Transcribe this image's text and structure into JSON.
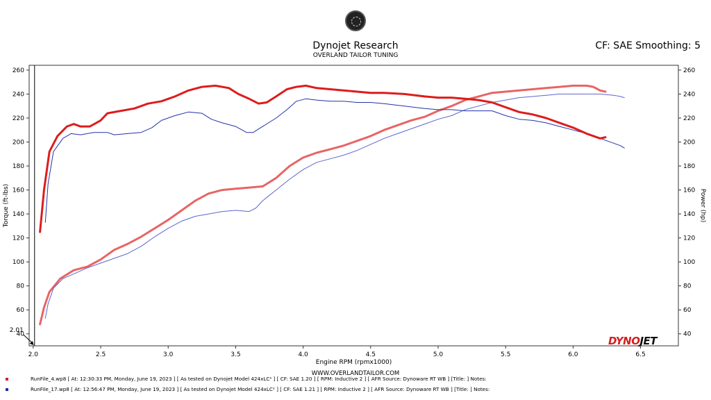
{
  "header": {
    "title": "Dynojet Research",
    "subtitle": "OVERLAND TAILOR TUNING",
    "settings": "CF: SAE Smoothing: 5"
  },
  "footer": {
    "url": "WWW.OVERLANDTAILOR.COM"
  },
  "brand": {
    "part1": "DYNO",
    "part2": "JET"
  },
  "runs": [
    {
      "text": "RunFile_4.wp8  [ At:  12:30:33 PM, Monday, June 19, 2023 ]  [ As tested on Dynojet Model 424xLC² ]  [ CF: SAE 1.20 ]  [ RPM: Inductive 2 ]  [ AFR Source: Dynoware RT WB ]  [Title: ]   Notes:",
      "color": "#d41f1f"
    },
    {
      "text": "RunFile_17.wp8  [ At:  12:56:47 PM, Monday, June 19, 2023 ]  [ As tested on Dynojet Model 424xLC² ]  [ CF: SAE 1.21 ]  [ RPM: Inductive 2 ]  [ AFR Source: Dynoware RT WB ]  [Title: ]   Notes:",
      "color": "#1a2db5"
    }
  ],
  "chart_data": {
    "type": "line",
    "xlabel": "Engine RPM (rpmx1000)",
    "ylabel": "Torque (ft-lbs)",
    "y2label": "Power (hp)",
    "xlim": [
      1.97,
      6.78
    ],
    "ylim": [
      30,
      264
    ],
    "xticks": [
      "2.0",
      "2.5",
      "3.0",
      "3.5",
      "4.0",
      "4.5",
      "5.0",
      "5.5",
      "6.0",
      "6.5"
    ],
    "yticks": [
      40,
      60,
      80,
      100,
      120,
      140,
      160,
      180,
      200,
      220,
      240,
      260
    ],
    "cursor": {
      "x": 2.01,
      "label": "2.01"
    },
    "grid": false,
    "series": [
      {
        "name": "RunFile_4.wp8",
        "kind": "torque",
        "color": "#dd1c1c",
        "width": 3,
        "points": [
          [
            2.05,
            125
          ],
          [
            2.08,
            160
          ],
          [
            2.12,
            192
          ],
          [
            2.18,
            205
          ],
          [
            2.25,
            213
          ],
          [
            2.3,
            215
          ],
          [
            2.35,
            213
          ],
          [
            2.42,
            213
          ],
          [
            2.5,
            218
          ],
          [
            2.55,
            224
          ],
          [
            2.65,
            226
          ],
          [
            2.75,
            228
          ],
          [
            2.85,
            232
          ],
          [
            2.95,
            234
          ],
          [
            3.05,
            238
          ],
          [
            3.15,
            243
          ],
          [
            3.25,
            246
          ],
          [
            3.35,
            247
          ],
          [
            3.45,
            245
          ],
          [
            3.52,
            240
          ],
          [
            3.6,
            236
          ],
          [
            3.67,
            232
          ],
          [
            3.73,
            233
          ],
          [
            3.8,
            238
          ],
          [
            3.88,
            244
          ],
          [
            3.95,
            246
          ],
          [
            4.02,
            247
          ],
          [
            4.1,
            245
          ],
          [
            4.2,
            244
          ],
          [
            4.3,
            243
          ],
          [
            4.4,
            242
          ],
          [
            4.5,
            241
          ],
          [
            4.6,
            241
          ],
          [
            4.75,
            240
          ],
          [
            4.9,
            238
          ],
          [
            5.0,
            237
          ],
          [
            5.1,
            237
          ],
          [
            5.2,
            236
          ],
          [
            5.3,
            235
          ],
          [
            5.4,
            233
          ],
          [
            5.5,
            229
          ],
          [
            5.6,
            225
          ],
          [
            5.7,
            223
          ],
          [
            5.8,
            220
          ],
          [
            5.9,
            216
          ],
          [
            6.0,
            212
          ],
          [
            6.1,
            207
          ],
          [
            6.2,
            203
          ],
          [
            6.24,
            204
          ]
        ]
      },
      {
        "name": "RunFile_17.wp8",
        "kind": "torque",
        "color": "#2332a8",
        "width": 1,
        "points": [
          [
            2.09,
            133
          ],
          [
            2.11,
            165
          ],
          [
            2.15,
            192
          ],
          [
            2.22,
            203
          ],
          [
            2.28,
            207
          ],
          [
            2.35,
            206
          ],
          [
            2.45,
            208
          ],
          [
            2.55,
            208
          ],
          [
            2.6,
            206
          ],
          [
            2.7,
            207
          ],
          [
            2.8,
            208
          ],
          [
            2.88,
            212
          ],
          [
            2.95,
            218
          ],
          [
            3.05,
            222
          ],
          [
            3.15,
            225
          ],
          [
            3.25,
            224
          ],
          [
            3.32,
            219
          ],
          [
            3.4,
            216
          ],
          [
            3.5,
            213
          ],
          [
            3.58,
            208
          ],
          [
            3.63,
            208
          ],
          [
            3.7,
            213
          ],
          [
            3.8,
            220
          ],
          [
            3.88,
            227
          ],
          [
            3.95,
            234
          ],
          [
            4.02,
            236
          ],
          [
            4.1,
            235
          ],
          [
            4.2,
            234
          ],
          [
            4.3,
            234
          ],
          [
            4.4,
            233
          ],
          [
            4.5,
            233
          ],
          [
            4.6,
            232
          ],
          [
            4.75,
            230
          ],
          [
            4.9,
            228
          ],
          [
            5.0,
            227
          ],
          [
            5.1,
            227
          ],
          [
            5.2,
            226
          ],
          [
            5.3,
            226
          ],
          [
            5.4,
            226
          ],
          [
            5.5,
            222
          ],
          [
            5.6,
            219
          ],
          [
            5.7,
            218
          ],
          [
            5.8,
            216
          ],
          [
            5.9,
            213
          ],
          [
            6.0,
            210
          ],
          [
            6.1,
            207
          ],
          [
            6.2,
            203
          ],
          [
            6.3,
            199
          ],
          [
            6.35,
            197
          ],
          [
            6.38,
            195
          ]
        ]
      },
      {
        "name": "RunFile_4.wp8",
        "kind": "power",
        "color": "#e86464",
        "width": 3,
        "points": [
          [
            2.05,
            48
          ],
          [
            2.08,
            62
          ],
          [
            2.12,
            75
          ],
          [
            2.2,
            86
          ],
          [
            2.3,
            93
          ],
          [
            2.4,
            96
          ],
          [
            2.5,
            102
          ],
          [
            2.6,
            110
          ],
          [
            2.7,
            115
          ],
          [
            2.8,
            121
          ],
          [
            2.9,
            128
          ],
          [
            3.0,
            135
          ],
          [
            3.1,
            143
          ],
          [
            3.2,
            151
          ],
          [
            3.3,
            157
          ],
          [
            3.4,
            160
          ],
          [
            3.5,
            161
          ],
          [
            3.6,
            162
          ],
          [
            3.7,
            163
          ],
          [
            3.8,
            170
          ],
          [
            3.9,
            180
          ],
          [
            4.0,
            187
          ],
          [
            4.1,
            191
          ],
          [
            4.2,
            194
          ],
          [
            4.3,
            197
          ],
          [
            4.4,
            201
          ],
          [
            4.5,
            205
          ],
          [
            4.6,
            210
          ],
          [
            4.7,
            214
          ],
          [
            4.8,
            218
          ],
          [
            4.9,
            221
          ],
          [
            5.0,
            226
          ],
          [
            5.1,
            230
          ],
          [
            5.2,
            235
          ],
          [
            5.3,
            238
          ],
          [
            5.4,
            241
          ],
          [
            5.5,
            242
          ],
          [
            5.6,
            243
          ],
          [
            5.7,
            244
          ],
          [
            5.8,
            245
          ],
          [
            5.9,
            246
          ],
          [
            6.0,
            247
          ],
          [
            6.1,
            247
          ],
          [
            6.15,
            246
          ],
          [
            6.2,
            243
          ],
          [
            6.24,
            242
          ]
        ]
      },
      {
        "name": "RunFile_17.wp8",
        "kind": "power",
        "color": "#5b66cc",
        "width": 1,
        "points": [
          [
            2.09,
            53
          ],
          [
            2.11,
            65
          ],
          [
            2.15,
            78
          ],
          [
            2.22,
            86
          ],
          [
            2.3,
            90
          ],
          [
            2.4,
            95
          ],
          [
            2.5,
            99
          ],
          [
            2.6,
            103
          ],
          [
            2.7,
            107
          ],
          [
            2.8,
            113
          ],
          [
            2.9,
            121
          ],
          [
            3.0,
            128
          ],
          [
            3.1,
            134
          ],
          [
            3.2,
            138
          ],
          [
            3.3,
            140
          ],
          [
            3.4,
            142
          ],
          [
            3.5,
            143
          ],
          [
            3.6,
            142
          ],
          [
            3.65,
            145
          ],
          [
            3.7,
            151
          ],
          [
            3.8,
            160
          ],
          [
            3.9,
            169
          ],
          [
            4.0,
            177
          ],
          [
            4.1,
            183
          ],
          [
            4.2,
            186
          ],
          [
            4.3,
            189
          ],
          [
            4.4,
            193
          ],
          [
            4.5,
            198
          ],
          [
            4.6,
            203
          ],
          [
            4.7,
            207
          ],
          [
            4.8,
            211
          ],
          [
            4.9,
            215
          ],
          [
            5.0,
            219
          ],
          [
            5.1,
            222
          ],
          [
            5.2,
            227
          ],
          [
            5.3,
            230
          ],
          [
            5.4,
            233
          ],
          [
            5.5,
            235
          ],
          [
            5.6,
            237
          ],
          [
            5.7,
            238
          ],
          [
            5.8,
            239
          ],
          [
            5.9,
            240
          ],
          [
            6.0,
            240
          ],
          [
            6.1,
            240
          ],
          [
            6.2,
            240
          ],
          [
            6.3,
            239
          ],
          [
            6.35,
            238
          ],
          [
            6.38,
            237
          ]
        ]
      }
    ]
  }
}
